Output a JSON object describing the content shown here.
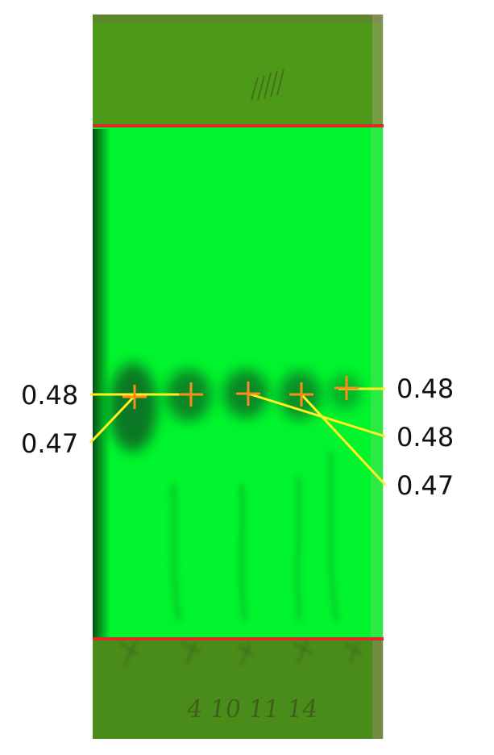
{
  "plate": {
    "solvent_front_color": "#e02828",
    "origin_line_color": "#e02828",
    "plate_color": "#00f52e",
    "outside_color": "#4a8a1a"
  },
  "annotation": {
    "line_color": "#ffee22",
    "marker_color": "#ff8c1a",
    "left_labels": [
      "0.48",
      "0.47"
    ],
    "right_labels": [
      "0.48",
      "0.48",
      "0.47"
    ]
  },
  "handwriting": {
    "lane_numbers": "4 10 11 14"
  }
}
